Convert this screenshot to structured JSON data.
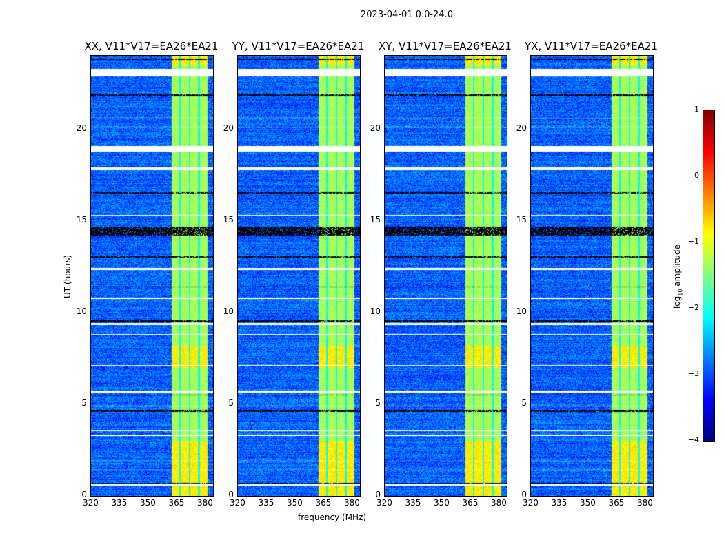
{
  "chart_data": {
    "type": "heatmap",
    "title": "2023-04-01 0.0-24.0",
    "xlabel": "frequency (MHz)",
    "ylabel": "UT (hours)",
    "xlim": [
      320,
      384
    ],
    "ylim": [
      0,
      24
    ],
    "xticks": [
      "320",
      "335",
      "350",
      "365",
      "380"
    ],
    "xtick_values": [
      320,
      335,
      350,
      365,
      380
    ],
    "yticks": [
      "0",
      "5",
      "10",
      "15",
      "20"
    ],
    "ytick_values": [
      0,
      5,
      10,
      15,
      20
    ],
    "panels": [
      {
        "title": "XX, V11*V17=EA26*EA21"
      },
      {
        "title": "YY, V11*V17=EA26*EA21"
      },
      {
        "title": "XY, V11*V17=EA26*EA21"
      },
      {
        "title": "YX, V11*V17=EA26*EA21"
      }
    ],
    "colorbar": {
      "label": "log10 amplitude",
      "label_main": "log",
      "label_sub": "10",
      "label_rest": " amplitude",
      "range": [
        -4,
        1
      ],
      "ticks": [
        "1",
        "0",
        "−1",
        "−2",
        "−3",
        "−4"
      ],
      "tick_values": [
        1,
        0,
        -1,
        -2,
        -3,
        -4
      ],
      "colormap": "jet"
    },
    "background_level": -2.9,
    "rfi_band_mhz": [
      362,
      381
    ],
    "rfi_band_level": -1.3,
    "subband_gaps_mhz": [
      366.5,
      371.5,
      376.5
    ],
    "flagged_white_hours": [
      [
        22.9,
        23.3
      ],
      [
        18.8,
        19.1
      ],
      [
        17.8,
        17.95
      ],
      [
        12.35,
        12.45
      ],
      [
        10.75,
        10.85
      ],
      [
        9.35,
        9.45
      ],
      [
        8.8,
        8.85
      ],
      [
        7.1,
        7.15
      ],
      [
        5.65,
        5.75
      ],
      [
        4.9,
        4.95
      ],
      [
        3.55,
        3.6
      ],
      [
        3.3,
        3.35
      ],
      [
        1.9,
        1.95
      ],
      [
        1.4,
        1.45
      ],
      [
        0.6,
        0.65
      ],
      [
        15.3,
        15.35
      ],
      [
        20.6,
        20.65
      ],
      [
        20.1,
        20.15
      ]
    ],
    "flagged_black_hours": [
      [
        23.8,
        23.85
      ],
      [
        21.8,
        21.9
      ],
      [
        16.5,
        16.6
      ],
      [
        14.2,
        14.7
      ],
      [
        13.0,
        13.1
      ],
      [
        11.4,
        11.45
      ],
      [
        9.5,
        9.6
      ],
      [
        5.5,
        5.55
      ],
      [
        4.6,
        4.7
      ],
      [
        0.7,
        0.75
      ]
    ]
  }
}
